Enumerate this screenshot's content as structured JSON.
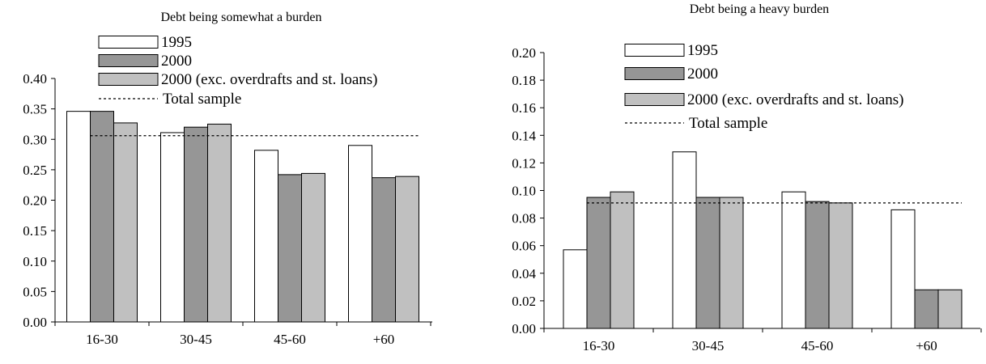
{
  "chart_data": [
    {
      "type": "bar",
      "title": "Debt being somewhat a burden",
      "categories": [
        "16-30",
        "30-45",
        "45-60",
        "+60"
      ],
      "series": [
        {
          "name": "1995",
          "values": [
            0.346,
            0.311,
            0.282,
            0.29
          ],
          "color": "#ffffff"
        },
        {
          "name": "2000",
          "values": [
            0.346,
            0.32,
            0.242,
            0.237
          ],
          "color": "#969696"
        },
        {
          "name": "2000 (exc. overdrafts and st. loans)",
          "values": [
            0.327,
            0.325,
            0.244,
            0.239
          ],
          "color": "#c0c0c0"
        }
      ],
      "reference_line": {
        "name": "Total sample",
        "value": 0.306,
        "style": "dotted"
      },
      "yticks": [
        "0.00",
        "0.05",
        "0.10",
        "0.15",
        "0.20",
        "0.25",
        "0.30",
        "0.35",
        "0.40"
      ],
      "ylim": [
        0,
        0.4
      ],
      "grid": false,
      "legend_position": "top"
    },
    {
      "type": "bar",
      "title": "Debt being a heavy burden",
      "categories": [
        "16-30",
        "30-45",
        "45-60",
        "+60"
      ],
      "series": [
        {
          "name": "1995",
          "values": [
            0.057,
            0.128,
            0.099,
            0.086
          ],
          "color": "#ffffff"
        },
        {
          "name": "2000",
          "values": [
            0.095,
            0.095,
            0.092,
            0.028
          ],
          "color": "#969696"
        },
        {
          "name": "2000 (exc. overdrafts and st. loans)",
          "values": [
            0.099,
            0.095,
            0.091,
            0.028
          ],
          "color": "#c0c0c0"
        }
      ],
      "reference_line": {
        "name": "Total sample",
        "value": 0.091,
        "style": "dotted"
      },
      "yticks": [
        "0.00",
        "0.02",
        "0.04",
        "0.06",
        "0.08",
        "0.10",
        "0.12",
        "0.14",
        "0.16",
        "0.18",
        "0.20"
      ],
      "ylim": [
        0,
        0.2
      ],
      "grid": false,
      "legend_position": "top"
    }
  ]
}
